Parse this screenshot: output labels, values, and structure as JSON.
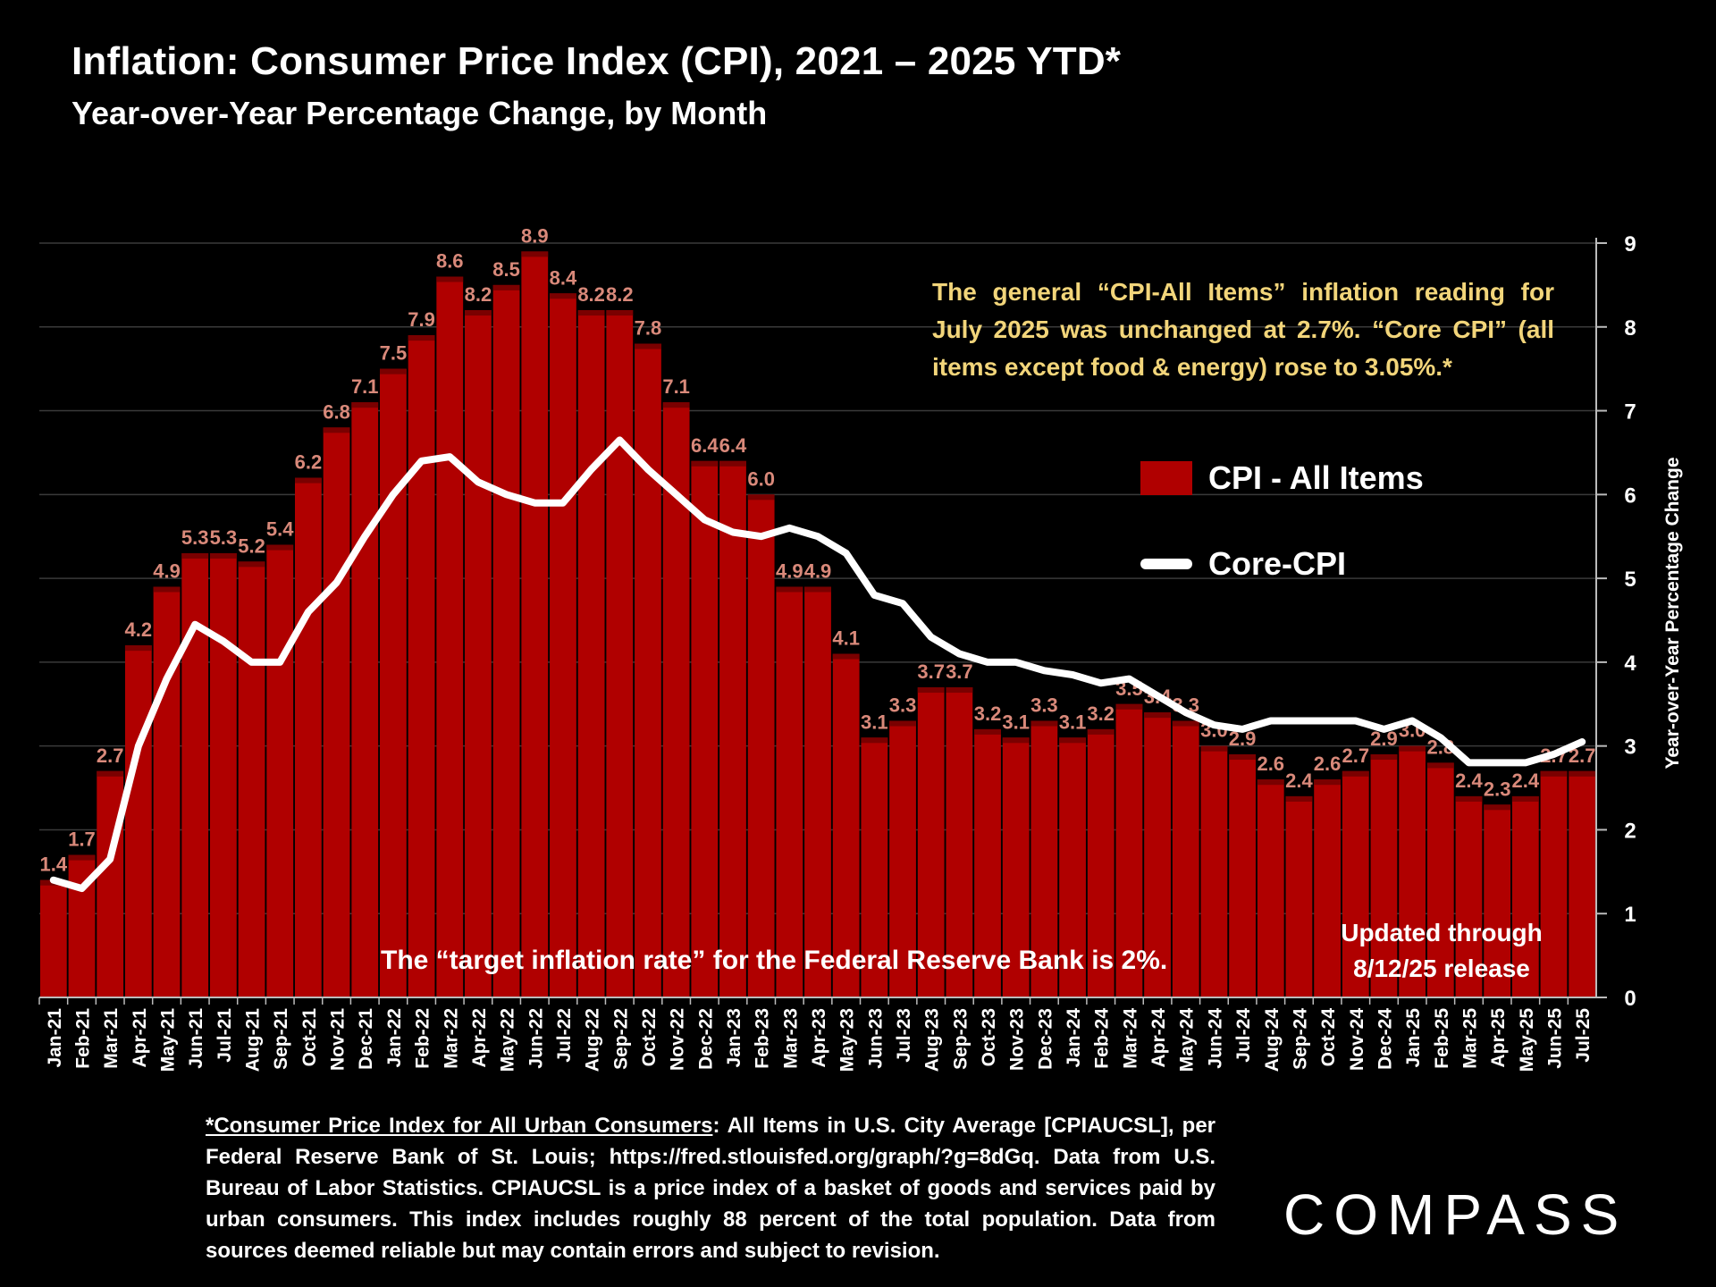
{
  "chart_data": {
    "type": "bar",
    "title": "Inflation: Consumer Price Index (CPI), 2021 – 2025 YTD*",
    "subtitle": "Year-over-Year Percentage Change, by Month",
    "ylabel": "Year-over-Year Percentage Change",
    "ylim": [
      0,
      9
    ],
    "yticks": [
      "0",
      "1",
      "2",
      "3",
      "4",
      "5",
      "6",
      "7",
      "8",
      "9"
    ],
    "categories": [
      "Jan-21",
      "Feb-21",
      "Mar-21",
      "Apr-21",
      "May-21",
      "Jun-21",
      "Jul-21",
      "Aug-21",
      "Sep-21",
      "Oct-21",
      "Nov-21",
      "Dec-21",
      "Jan-22",
      "Feb-22",
      "Mar-22",
      "Apr-22",
      "May-22",
      "Jun-22",
      "Jul-22",
      "Aug-22",
      "Sep-22",
      "Oct-22",
      "Nov-22",
      "Dec-22",
      "Jan-23",
      "Feb-23",
      "Mar-23",
      "Apr-23",
      "May-23",
      "Jun-23",
      "Jul-23",
      "Aug-23",
      "Sep-23",
      "Oct-23",
      "Nov-23",
      "Dec-23",
      "Jan-24",
      "Feb-24",
      "Mar-24",
      "Apr-24",
      "May-24",
      "Jun-24",
      "Jul-24",
      "Aug-24",
      "Sep-24",
      "Oct-24",
      "Nov-24",
      "Dec-24",
      "Jan-25",
      "Feb-25",
      "Mar-25",
      "Apr-25",
      "May-25",
      "Jun-25",
      "Jul-25"
    ],
    "series": [
      {
        "name": "CPI - All Items",
        "type": "bar",
        "color": "#b00000",
        "values": [
          1.4,
          1.7,
          2.7,
          4.2,
          4.9,
          5.3,
          5.3,
          5.2,
          5.4,
          6.2,
          6.8,
          7.1,
          7.5,
          7.9,
          8.6,
          8.2,
          8.5,
          8.9,
          8.4,
          8.2,
          8.2,
          7.8,
          7.1,
          6.4,
          6.4,
          6.0,
          4.9,
          4.9,
          4.1,
          3.1,
          3.3,
          3.7,
          3.7,
          3.2,
          3.1,
          3.3,
          3.1,
          3.2,
          3.5,
          3.4,
          3.3,
          3.0,
          2.9,
          2.6,
          2.4,
          2.6,
          2.7,
          2.9,
          3.0,
          2.8,
          2.4,
          2.3,
          2.4,
          2.7,
          2.7
        ],
        "labels": [
          "1.4",
          "1.7",
          "2.7",
          "4.2",
          "4.9",
          "5.3",
          "5.3",
          "5.2",
          "5.4",
          "6.2",
          "6.8",
          "7.1",
          "7.5",
          "7.9",
          "8.6",
          "8.2",
          "8.5",
          "8.9",
          "8.4",
          "8.2",
          "8.2",
          "7.8",
          "7.1",
          "6.4",
          "6.4",
          "6.0",
          "4.9",
          "4.9",
          "4.1",
          "3.1",
          "3.3",
          "3.7",
          "3.7",
          "3.2",
          "3.1",
          "3.3",
          "3.1",
          "3.2",
          "3.5",
          "3.4",
          "3.3",
          "3.0",
          "2.9",
          "2.6",
          "2.4",
          "2.6",
          "2.7",
          "2.9",
          "3.0",
          "2.8",
          "2.4",
          "2.3",
          "2.4",
          "2.7",
          "2.7"
        ]
      },
      {
        "name": "Core-CPI",
        "type": "line",
        "color": "#ffffff",
        "values": [
          1.4,
          1.3,
          1.65,
          3.0,
          3.8,
          4.45,
          4.25,
          4.0,
          4.0,
          4.6,
          4.95,
          5.5,
          6.0,
          6.4,
          6.45,
          6.15,
          6.0,
          5.9,
          5.9,
          6.3,
          6.65,
          6.3,
          6.0,
          5.7,
          5.55,
          5.5,
          5.6,
          5.5,
          5.3,
          4.8,
          4.7,
          4.3,
          4.1,
          4.0,
          4.0,
          3.9,
          3.85,
          3.75,
          3.8,
          3.6,
          3.4,
          3.25,
          3.2,
          3.3,
          3.3,
          3.3,
          3.3,
          3.2,
          3.3,
          3.1,
          2.8,
          2.8,
          2.8,
          2.9,
          3.05
        ]
      }
    ],
    "legend": {
      "placement": "right",
      "items": [
        "CPI - All Items",
        "Core-CPI"
      ]
    },
    "annotations": {
      "main": "The general “CPI-All Items” inflation reading for July 2025 was unchanged at 2.7%. “Core CPI” (all items except food & energy) rose to 3.05%.*",
      "target": "The “target inflation rate” for the Federal Reserve Bank is 2%.",
      "updated_line1": "Updated through",
      "updated_line2": "8/12/25 release"
    },
    "grid": true
  },
  "footnote": {
    "lead": "*Consumer Price Index for All Urban Consumers",
    "rest": ": All Items in U.S. City Average [CPIAUCSL], per Federal Reserve Bank of St. Louis; https://fred.stlouisfed.org/graph/?g=8dGq. Data from U.S. Bureau of Labor Statistics. CPIAUCSL is a price index of a basket of goods and services paid by urban consumers. This index includes roughly 88 percent of the total population. Data from sources deemed reliable but may contain errors and subject to revision."
  },
  "logo": {
    "text": "COMPASS"
  },
  "colors": {
    "background": "#000000",
    "bar": "#b00000",
    "line": "#ffffff",
    "annotation": "#f2d57a",
    "bar_label": "#d9897a"
  }
}
